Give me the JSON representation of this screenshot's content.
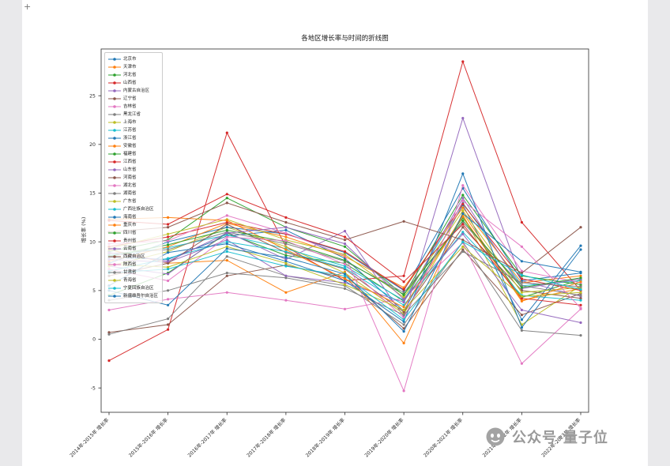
{
  "decorations": {
    "corner_mark": "+"
  },
  "watermark": {
    "text": "公众号·量子位",
    "icon": "qbitai-face-icon",
    "color": "#999999"
  },
  "chart_data": {
    "type": "line",
    "title": "各地区增长率与时间的折线图",
    "xlabel": "",
    "ylabel": "增长率 (%)",
    "ylim": [
      -7.5,
      29.8
    ],
    "yticks": [
      -5,
      0,
      5,
      10,
      15,
      20,
      25
    ],
    "grid": false,
    "legend_position": "upper left",
    "markers": true,
    "categories": [
      "2014年-2015年 增长率",
      "2015年-2016年 增长率",
      "2016年-2017年 增长率",
      "2017年-2018年 增长率",
      "2018年-2019年 增长率",
      "2019年-2020年 增长率",
      "2020年-2021年 增长率",
      "2021年-2022年 增长率",
      "2022年-2023年 增长率"
    ],
    "series": [
      {
        "name": "北京市",
        "color": "#1f77b4",
        "values": [
          8.4,
          8.2,
          10.6,
          11.2,
          8.3,
          2.9,
          13.8,
          2.0,
          9.6
        ]
      },
      {
        "name": "天津市",
        "color": "#ff7f0e",
        "values": [
          9.2,
          7.8,
          8.1,
          4.8,
          6.9,
          -0.4,
          13.0,
          4.0,
          5.2
        ]
      },
      {
        "name": "河北省",
        "color": "#2ca02c",
        "values": [
          4.5,
          6.8,
          10.9,
          8.6,
          7.8,
          3.9,
          12.5,
          4.3,
          6.1
        ]
      },
      {
        "name": "山西省",
        "color": "#d62728",
        "values": [
          -2.2,
          1.0,
          21.2,
          9.5,
          6.0,
          6.5,
          28.5,
          12.0,
          5.0
        ]
      },
      {
        "name": "内蒙古自治区",
        "color": "#9467bd",
        "values": [
          7.5,
          6.7,
          11.0,
          8.2,
          11.1,
          2.3,
          22.7,
          6.0,
          4.4
        ]
      },
      {
        "name": "辽宁省",
        "color": "#8c564b",
        "values": [
          0.7,
          1.5,
          6.5,
          7.6,
          6.3,
          1.1,
          9.2,
          2.5,
          4.7
        ]
      },
      {
        "name": "吉林省",
        "color": "#e377c2",
        "values": [
          3.0,
          4.1,
          4.8,
          4.0,
          3.1,
          4.2,
          9.9,
          -2.5,
          3.1
        ]
      },
      {
        "name": "黑龙江省",
        "color": "#7f7f7f",
        "values": [
          0.5,
          2.1,
          8.5,
          6.5,
          5.5,
          1.5,
          10.0,
          0.9,
          0.4
        ]
      },
      {
        "name": "上海市",
        "color": "#bcbd22",
        "values": [
          7.5,
          9.0,
          11.5,
          9.5,
          6.8,
          2.6,
          12.8,
          1.5,
          5.5
        ]
      },
      {
        "name": "江苏省",
        "color": "#17becf",
        "values": [
          8.6,
          9.4,
          10.7,
          9.3,
          7.5,
          4.0,
          14.0,
          5.5,
          6.0
        ]
      },
      {
        "name": "浙江省",
        "color": "#1f77b4",
        "values": [
          7.8,
          10.0,
          11.5,
          10.8,
          8.9,
          5.0,
          15.5,
          6.0,
          6.8
        ]
      },
      {
        "name": "安徽省",
        "color": "#ff7f0e",
        "values": [
          8.0,
          9.5,
          11.9,
          10.5,
          8.5,
          5.3,
          13.5,
          5.8,
          6.5
        ]
      },
      {
        "name": "福建省",
        "color": "#2ca02c",
        "values": [
          9.0,
          10.2,
          14.5,
          11.5,
          9.5,
          4.5,
          14.8,
          6.5,
          5.6
        ]
      },
      {
        "name": "江西省",
        "color": "#d62728",
        "values": [
          9.5,
          10.5,
          12.0,
          10.8,
          9.0,
          5.1,
          13.9,
          6.2,
          5.0
        ]
      },
      {
        "name": "山东省",
        "color": "#9467bd",
        "values": [
          8.2,
          7.9,
          10.2,
          6.5,
          5.8,
          3.8,
          14.5,
          5.2,
          6.2
        ]
      },
      {
        "name": "河南省",
        "color": "#8c564b",
        "values": [
          6.5,
          7.8,
          11.8,
          8.9,
          7.2,
          2.8,
          11.5,
          5.0,
          4.2
        ]
      },
      {
        "name": "湖北省",
        "color": "#e377c2",
        "values": [
          9.8,
          10.1,
          12.7,
          10.9,
          8.6,
          -5.3,
          15.8,
          7.0,
          5.8
        ]
      },
      {
        "name": "湖南省",
        "color": "#7f7f7f",
        "values": [
          8.8,
          9.2,
          11.0,
          9.8,
          8.0,
          4.8,
          12.0,
          5.5,
          4.5
        ]
      },
      {
        "name": "广东省",
        "color": "#bcbd22",
        "values": [
          9.3,
          10.8,
          12.3,
          10.2,
          8.7,
          4.3,
          13.2,
          4.8,
          5.3
        ]
      },
      {
        "name": "广西壮族自治区",
        "color": "#17becf",
        "values": [
          7.0,
          8.3,
          10.0,
          9.0,
          7.3,
          3.5,
          11.0,
          4.5,
          4.0
        ]
      },
      {
        "name": "海南省",
        "color": "#1f77b4",
        "values": [
          5.5,
          8.9,
          9.8,
          8.0,
          6.0,
          1.8,
          17.0,
          1.2,
          9.2
        ]
      },
      {
        "name": "重庆市",
        "color": "#ff7f0e",
        "values": [
          12.3,
          12.5,
          12.2,
          9.2,
          6.2,
          3.3,
          12.6,
          3.9,
          5.9
        ]
      },
      {
        "name": "四川省",
        "color": "#2ca02c",
        "values": [
          8.5,
          9.7,
          11.2,
          10.0,
          8.1,
          4.6,
          12.2,
          5.3,
          6.3
        ]
      },
      {
        "name": "贵州省",
        "color": "#d62728",
        "values": [
          12.2,
          11.8,
          14.9,
          12.5,
          10.5,
          5.9,
          11.8,
          4.2,
          3.5
        ]
      },
      {
        "name": "云南省",
        "color": "#9467bd",
        "values": [
          8.9,
          8.0,
          10.9,
          11.5,
          9.8,
          4.1,
          10.8,
          3.0,
          1.7
        ]
      },
      {
        "name": "西藏自治区",
        "color": "#8c564b",
        "values": [
          11.0,
          11.5,
          14.0,
          12.0,
          10.2,
          12.1,
          10.2,
          6.8,
          11.5
        ]
      },
      {
        "name": "陕西省",
        "color": "#e377c2",
        "values": [
          7.2,
          6.0,
          10.5,
          10.1,
          7.7,
          2.2,
          14.2,
          9.5,
          3.2
        ]
      },
      {
        "name": "甘肃省",
        "color": "#7f7f7f",
        "values": [
          4.0,
          5.0,
          6.8,
          6.3,
          5.2,
          2.5,
          9.0,
          5.8,
          5.4
        ]
      },
      {
        "name": "青海省",
        "color": "#bcbd22",
        "values": [
          7.7,
          7.4,
          9.5,
          7.8,
          5.6,
          3.0,
          9.5,
          4.4,
          4.8
        ]
      },
      {
        "name": "宁夏回族自治区",
        "color": "#17becf",
        "values": [
          6.8,
          7.2,
          9.0,
          7.5,
          6.5,
          2.0,
          10.0,
          6.6,
          5.1
        ]
      },
      {
        "name": "新疆维吾尔自治区",
        "color": "#1f77b4",
        "values": [
          5.0,
          3.5,
          9.3,
          8.4,
          6.7,
          0.8,
          12.9,
          8.0,
          6.9
        ]
      }
    ]
  }
}
